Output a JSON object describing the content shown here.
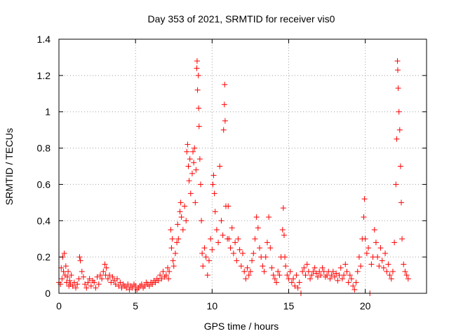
{
  "chart_data": {
    "type": "scatter",
    "title": "Day 353 of 2021, SRMTID for receiver vis0",
    "xlabel": "GPS time / hours",
    "ylabel": "SRMTID / TECUs",
    "xlim": [
      0,
      24
    ],
    "ylim": [
      0,
      1.4
    ],
    "xticks": [
      0,
      5,
      10,
      15,
      20
    ],
    "xtick_labels": [
      "0",
      "5",
      "10",
      "15",
      "20"
    ],
    "yticks": [
      0,
      0.2,
      0.4,
      0.6,
      0.8,
      1.0,
      1.2,
      1.4
    ],
    "ytick_labels": [
      "0",
      "0.2",
      "0.4",
      "0.6",
      "0.8",
      "1",
      "1.2",
      "1.4"
    ],
    "grid": true,
    "marker": "plus",
    "color": "#ff0000",
    "series": [
      {
        "name": "vis0",
        "points": [
          [
            0.0,
            0.06
          ],
          [
            0.1,
            0.05
          ],
          [
            0.15,
            0.14
          ],
          [
            0.2,
            0.08
          ],
          [
            0.25,
            0.2
          ],
          [
            0.3,
            0.12
          ],
          [
            0.35,
            0.22
          ],
          [
            0.4,
            0.1
          ],
          [
            0.45,
            0.15
          ],
          [
            0.5,
            0.06
          ],
          [
            0.55,
            0.09
          ],
          [
            0.6,
            0.12
          ],
          [
            0.65,
            0.04
          ],
          [
            0.7,
            0.07
          ],
          [
            0.75,
            0.05
          ],
          [
            0.8,
            0.1
          ],
          [
            0.9,
            0.04
          ],
          [
            1.0,
            0.06
          ],
          [
            1.1,
            0.03
          ],
          [
            1.2,
            0.05
          ],
          [
            1.3,
            0.08
          ],
          [
            1.35,
            0.2
          ],
          [
            1.4,
            0.18
          ],
          [
            1.5,
            0.12
          ],
          [
            1.6,
            0.09
          ],
          [
            1.7,
            0.05
          ],
          [
            1.8,
            0.03
          ],
          [
            1.9,
            0.06
          ],
          [
            2.0,
            0.08
          ],
          [
            2.1,
            0.04
          ],
          [
            2.2,
            0.07
          ],
          [
            2.3,
            0.06
          ],
          [
            2.4,
            0.03
          ],
          [
            2.5,
            0.09
          ],
          [
            2.6,
            0.05
          ],
          [
            2.7,
            0.1
          ],
          [
            2.8,
            0.08
          ],
          [
            2.9,
            0.12
          ],
          [
            3.0,
            0.16
          ],
          [
            3.05,
            0.1
          ],
          [
            3.1,
            0.14
          ],
          [
            3.2,
            0.08
          ],
          [
            3.3,
            0.1
          ],
          [
            3.4,
            0.06
          ],
          [
            3.5,
            0.09
          ],
          [
            3.6,
            0.07
          ],
          [
            3.7,
            0.05
          ],
          [
            3.8,
            0.08
          ],
          [
            3.9,
            0.04
          ],
          [
            4.0,
            0.06
          ],
          [
            4.1,
            0.03
          ],
          [
            4.2,
            0.05
          ],
          [
            4.3,
            0.04
          ],
          [
            4.4,
            0.03
          ],
          [
            4.5,
            0.05
          ],
          [
            4.6,
            0.02
          ],
          [
            4.7,
            0.04
          ],
          [
            4.8,
            0.03
          ],
          [
            4.9,
            0.05
          ],
          [
            5.0,
            0.04
          ],
          [
            5.1,
            0.02
          ],
          [
            5.2,
            0.03
          ],
          [
            5.3,
            0.04
          ],
          [
            5.4,
            0.05
          ],
          [
            5.5,
            0.03
          ],
          [
            5.6,
            0.04
          ],
          [
            5.7,
            0.06
          ],
          [
            5.8,
            0.05
          ],
          [
            5.9,
            0.04
          ],
          [
            6.0,
            0.06
          ],
          [
            6.1,
            0.05
          ],
          [
            6.2,
            0.07
          ],
          [
            6.3,
            0.06
          ],
          [
            6.4,
            0.08
          ],
          [
            6.5,
            0.07
          ],
          [
            6.6,
            0.1
          ],
          [
            6.7,
            0.08
          ],
          [
            6.8,
            0.12
          ],
          [
            6.9,
            0.09
          ],
          [
            7.0,
            0.1
          ],
          [
            7.1,
            0.14
          ],
          [
            7.15,
            0.08
          ],
          [
            7.2,
            0.12
          ],
          [
            7.3,
            0.35
          ],
          [
            7.35,
            0.25
          ],
          [
            7.4,
            0.3
          ],
          [
            7.45,
            0.18
          ],
          [
            7.5,
            0.15
          ],
          [
            7.6,
            0.22
          ],
          [
            7.7,
            0.28
          ],
          [
            7.75,
            0.38
          ],
          [
            7.8,
            0.3
          ],
          [
            7.9,
            0.45
          ],
          [
            7.95,
            0.5
          ],
          [
            8.0,
            0.42
          ],
          [
            8.1,
            0.35
          ],
          [
            8.2,
            0.48
          ],
          [
            8.3,
            0.4
          ],
          [
            8.35,
            0.78
          ],
          [
            8.4,
            0.82
          ],
          [
            8.45,
            0.7
          ],
          [
            8.5,
            0.62
          ],
          [
            8.55,
            0.74
          ],
          [
            8.6,
            0.55
          ],
          [
            8.7,
            0.66
          ],
          [
            8.75,
            0.78
          ],
          [
            8.8,
            0.72
          ],
          [
            8.85,
            0.8
          ],
          [
            8.9,
            0.5
          ],
          [
            8.95,
            0.68
          ],
          [
            9.0,
            1.24
          ],
          [
            9.02,
            1.28
          ],
          [
            9.05,
            1.12
          ],
          [
            9.1,
            1.2
          ],
          [
            9.12,
            1.02
          ],
          [
            9.15,
            0.92
          ],
          [
            9.2,
            0.74
          ],
          [
            9.25,
            0.6
          ],
          [
            9.3,
            0.4
          ],
          [
            9.35,
            0.22
          ],
          [
            9.4,
            0.15
          ],
          [
            9.5,
            0.25
          ],
          [
            9.6,
            0.2
          ],
          [
            9.7,
            0.1
          ],
          [
            9.8,
            0.18
          ],
          [
            9.9,
            0.3
          ],
          [
            10.0,
            0.24
          ],
          [
            10.05,
            0.6
          ],
          [
            10.1,
            0.65
          ],
          [
            10.15,
            0.55
          ],
          [
            10.2,
            0.45
          ],
          [
            10.3,
            0.35
          ],
          [
            10.4,
            0.28
          ],
          [
            10.5,
            0.7
          ],
          [
            10.6,
            0.4
          ],
          [
            10.7,
            0.32
          ],
          [
            10.75,
            0.9
          ],
          [
            10.8,
            1.04
          ],
          [
            10.82,
            1.15
          ],
          [
            10.85,
            0.95
          ],
          [
            10.9,
            0.48
          ],
          [
            11.0,
            0.3
          ],
          [
            11.05,
            0.48
          ],
          [
            11.1,
            0.3
          ],
          [
            11.2,
            0.25
          ],
          [
            11.3,
            0.36
          ],
          [
            11.4,
            0.22
          ],
          [
            11.5,
            0.28
          ],
          [
            11.6,
            0.18
          ],
          [
            11.7,
            0.3
          ],
          [
            11.8,
            0.24
          ],
          [
            11.9,
            0.15
          ],
          [
            12.0,
            0.22
          ],
          [
            12.1,
            0.12
          ],
          [
            12.2,
            0.08
          ],
          [
            12.3,
            0.14
          ],
          [
            12.4,
            0.1
          ],
          [
            12.5,
            0.12
          ],
          [
            12.6,
            0.18
          ],
          [
            12.7,
            0.22
          ],
          [
            12.8,
            0.3
          ],
          [
            12.9,
            0.42
          ],
          [
            13.0,
            0.36
          ],
          [
            13.1,
            0.25
          ],
          [
            13.2,
            0.2
          ],
          [
            13.3,
            0.15
          ],
          [
            13.4,
            0.12
          ],
          [
            13.5,
            0.2
          ],
          [
            13.6,
            0.28
          ],
          [
            13.7,
            0.42
          ],
          [
            13.8,
            0.25
          ],
          [
            13.9,
            0.14
          ],
          [
            14.0,
            0.1
          ],
          [
            14.1,
            0.08
          ],
          [
            14.2,
            0.06
          ],
          [
            14.3,
            0.12
          ],
          [
            14.4,
            0.1
          ],
          [
            14.5,
            0.2
          ],
          [
            14.6,
            0.35
          ],
          [
            14.65,
            0.47
          ],
          [
            14.7,
            0.32
          ],
          [
            14.75,
            0.2
          ],
          [
            14.8,
            0.15
          ],
          [
            14.9,
            0.1
          ],
          [
            15.0,
            0.08
          ],
          [
            15.1,
            0.12
          ],
          [
            15.2,
            0.06
          ],
          [
            15.3,
            0.08
          ],
          [
            15.4,
            0.04
          ],
          [
            15.5,
            0.1
          ],
          [
            15.6,
            0.03
          ],
          [
            15.7,
            0.06
          ],
          [
            15.8,
            0.0
          ],
          [
            15.9,
            0.12
          ],
          [
            16.0,
            0.14
          ],
          [
            16.1,
            0.1
          ],
          [
            16.2,
            0.16
          ],
          [
            16.3,
            0.12
          ],
          [
            16.4,
            0.08
          ],
          [
            16.5,
            0.1
          ],
          [
            16.6,
            0.12
          ],
          [
            16.7,
            0.14
          ],
          [
            16.8,
            0.11
          ],
          [
            16.9,
            0.09
          ],
          [
            17.0,
            0.12
          ],
          [
            17.1,
            0.1
          ],
          [
            17.2,
            0.14
          ],
          [
            17.3,
            0.12
          ],
          [
            17.4,
            0.09
          ],
          [
            17.5,
            0.1
          ],
          [
            17.6,
            0.12
          ],
          [
            17.7,
            0.08
          ],
          [
            17.8,
            0.1
          ],
          [
            17.9,
            0.12
          ],
          [
            18.0,
            0.09
          ],
          [
            18.1,
            0.11
          ],
          [
            18.2,
            0.07
          ],
          [
            18.3,
            0.1
          ],
          [
            18.4,
            0.14
          ],
          [
            18.5,
            0.08
          ],
          [
            18.6,
            0.1
          ],
          [
            18.7,
            0.16
          ],
          [
            18.8,
            0.12
          ],
          [
            18.9,
            0.06
          ],
          [
            19.0,
            0.1
          ],
          [
            19.1,
            0.08
          ],
          [
            19.2,
            0.04
          ],
          [
            19.3,
            0.02
          ],
          [
            19.4,
            0.06
          ],
          [
            19.5,
            0.12
          ],
          [
            19.6,
            0.2
          ],
          [
            19.7,
            0.15
          ],
          [
            19.8,
            0.3
          ],
          [
            19.9,
            0.42
          ],
          [
            19.95,
            0.52
          ],
          [
            20.0,
            0.3
          ],
          [
            20.1,
            0.22
          ],
          [
            20.2,
            0.25
          ],
          [
            20.3,
            0.0
          ],
          [
            20.4,
            0.16
          ],
          [
            20.5,
            0.2
          ],
          [
            20.6,
            0.35
          ],
          [
            20.7,
            0.28
          ],
          [
            20.8,
            0.2
          ],
          [
            20.9,
            0.15
          ],
          [
            21.0,
            0.25
          ],
          [
            21.1,
            0.18
          ],
          [
            21.2,
            0.14
          ],
          [
            21.3,
            0.22
          ],
          [
            21.4,
            0.12
          ],
          [
            21.5,
            0.16
          ],
          [
            21.6,
            0.1
          ],
          [
            21.7,
            0.08
          ],
          [
            21.8,
            0.12
          ],
          [
            21.9,
            0.28
          ],
          [
            22.0,
            0.6
          ],
          [
            22.05,
            0.85
          ],
          [
            22.1,
            1.28
          ],
          [
            22.12,
            1.23
          ],
          [
            22.15,
            1.13
          ],
          [
            22.2,
            1.0
          ],
          [
            22.25,
            0.9
          ],
          [
            22.3,
            0.7
          ],
          [
            22.35,
            0.5
          ],
          [
            22.4,
            0.3
          ],
          [
            22.5,
            0.16
          ],
          [
            22.6,
            0.12
          ],
          [
            22.7,
            0.1
          ],
          [
            22.8,
            0.08
          ]
        ]
      }
    ]
  }
}
